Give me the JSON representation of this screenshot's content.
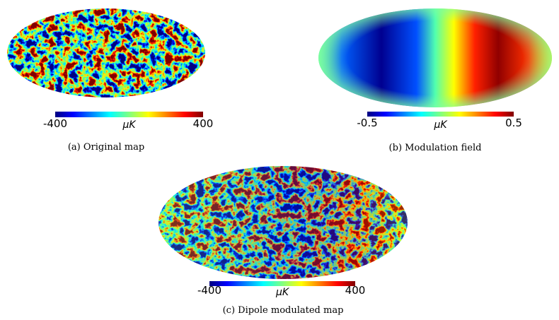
{
  "panels": [
    {
      "caption": "(a) Original map",
      "colorbar": {
        "min": -400,
        "unit": "μK",
        "max": 400
      }
    },
    {
      "caption": "(b) Modulation field",
      "colorbar": {
        "min": -0.5,
        "unit": "μK",
        "max": 0.5
      }
    },
    {
      "caption": "(c) Dipole modulated map",
      "colorbar": {
        "min": -400,
        "unit": "μK",
        "max": 400
      }
    }
  ]
}
